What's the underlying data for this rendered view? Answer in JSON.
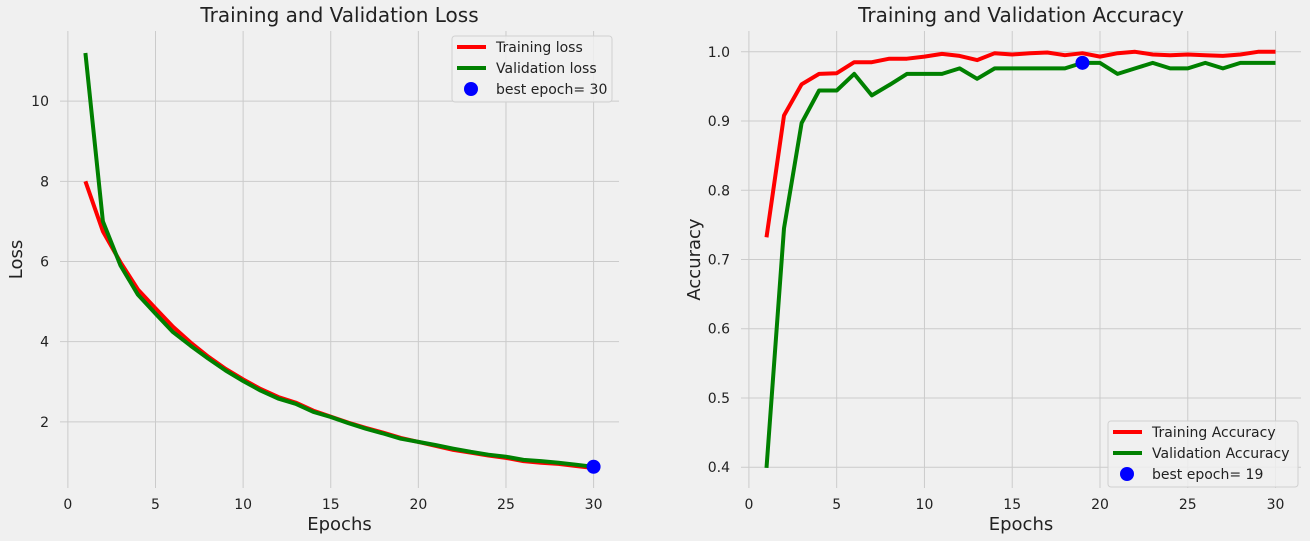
{
  "chart_data": [
    {
      "type": "line",
      "title": "Training and Validation Loss",
      "xlabel": "Epochs",
      "ylabel": "Loss",
      "xlim": [
        -0.45,
        31.45
      ],
      "ylim": [
        0.35,
        11.75
      ],
      "xticks": [
        0,
        5,
        10,
        15,
        20,
        25,
        30
      ],
      "yticks": [
        2,
        4,
        6,
        8,
        10
      ],
      "grid": true,
      "legend_position": "top-right",
      "x": [
        1,
        2,
        3,
        4,
        5,
        6,
        7,
        8,
        9,
        10,
        11,
        12,
        13,
        14,
        15,
        16,
        17,
        18,
        19,
        20,
        21,
        22,
        23,
        24,
        25,
        26,
        27,
        28,
        29,
        30
      ],
      "series": [
        {
          "name": "Training loss",
          "color": "#ff0000",
          "values": [
            8.0,
            6.75,
            5.98,
            5.3,
            4.83,
            4.37,
            3.98,
            3.63,
            3.32,
            3.06,
            2.82,
            2.62,
            2.48,
            2.28,
            2.13,
            1.98,
            1.85,
            1.73,
            1.6,
            1.5,
            1.4,
            1.3,
            1.23,
            1.16,
            1.1,
            1.02,
            0.98,
            0.95,
            0.9,
            0.85
          ]
        },
        {
          "name": "Validation loss",
          "color": "#008000",
          "values": [
            11.2,
            7.0,
            5.9,
            5.17,
            4.7,
            4.24,
            3.9,
            3.58,
            3.28,
            3.02,
            2.78,
            2.58,
            2.45,
            2.25,
            2.12,
            1.97,
            1.83,
            1.71,
            1.58,
            1.5,
            1.42,
            1.33,
            1.25,
            1.18,
            1.13,
            1.05,
            1.02,
            0.98,
            0.93,
            0.88
          ]
        }
      ],
      "best_point": {
        "label": "best epoch= 30",
        "x": 30,
        "y": 0.88,
        "color": "#0000ff"
      }
    },
    {
      "type": "line",
      "title": "Training and Validation Accuracy",
      "xlabel": "Epochs",
      "ylabel": "Accuracy",
      "xlim": [
        -0.45,
        31.45
      ],
      "ylim": [
        0.37,
        1.03
      ],
      "xticks": [
        0,
        5,
        10,
        15,
        20,
        25,
        30
      ],
      "yticks": [
        0.4,
        0.5,
        0.6,
        0.7,
        0.8,
        0.9,
        1.0
      ],
      "ytick_labels": [
        "0.4",
        "0.5",
        "0.6",
        "0.7",
        "0.8",
        "0.9",
        "1.0"
      ],
      "grid": true,
      "legend_position": "bottom-right",
      "x": [
        1,
        2,
        3,
        4,
        5,
        6,
        7,
        8,
        9,
        10,
        11,
        12,
        13,
        14,
        15,
        16,
        17,
        18,
        19,
        20,
        21,
        22,
        23,
        24,
        25,
        26,
        27,
        28,
        29,
        30
      ],
      "series": [
        {
          "name": "Training Accuracy",
          "color": "#ff0000",
          "values": [
            0.732,
            0.908,
            0.953,
            0.968,
            0.969,
            0.985,
            0.985,
            0.99,
            0.99,
            0.993,
            0.997,
            0.994,
            0.988,
            0.998,
            0.996,
            0.998,
            0.999,
            0.995,
            0.998,
            0.993,
            0.998,
            1.0,
            0.996,
            0.995,
            0.996,
            0.995,
            0.994,
            0.996,
            1.0,
            1.0
          ]
        },
        {
          "name": "Validation Accuracy",
          "color": "#008000",
          "values": [
            0.399,
            0.745,
            0.897,
            0.944,
            0.944,
            0.968,
            0.937,
            0.952,
            0.968,
            0.968,
            0.968,
            0.976,
            0.961,
            0.976,
            0.976,
            0.976,
            0.976,
            0.976,
            0.984,
            0.984,
            0.968,
            0.976,
            0.984,
            0.976,
            0.976,
            0.984,
            0.976,
            0.984,
            0.984,
            0.984
          ]
        }
      ],
      "best_point": {
        "label": "best epoch= 19",
        "x": 19,
        "y": 0.984,
        "color": "#0000ff"
      }
    }
  ]
}
